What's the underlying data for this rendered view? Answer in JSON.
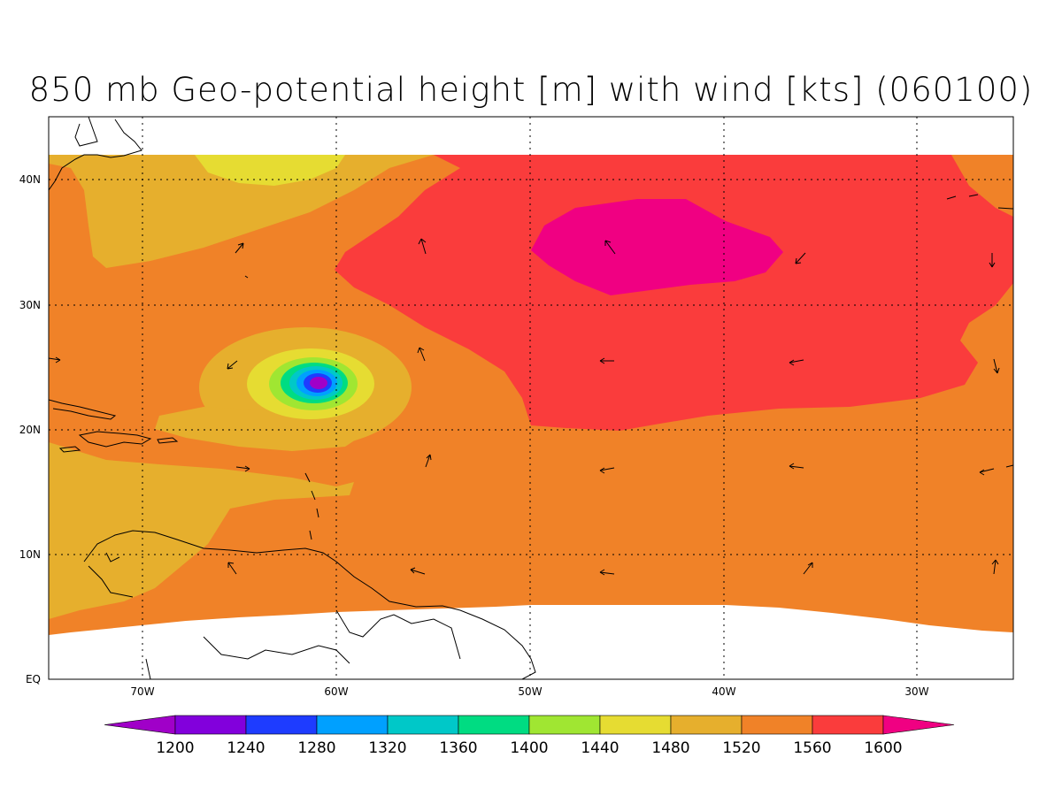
{
  "title": "850 mb Geo-potential height [m] with wind [kts] (060100)",
  "lon_ticks": [
    "70W",
    "60W",
    "50W",
    "40W",
    "30W"
  ],
  "lat_ticks": [
    "40N",
    "30N",
    "20N",
    "10N",
    "EQ"
  ],
  "colorbar": {
    "labels": [
      "1200",
      "1240",
      "1280",
      "1320",
      "1360",
      "1400",
      "1440",
      "1480",
      "1520",
      "1560",
      "1600"
    ],
    "colors": [
      "#a000c8",
      "#8200dc",
      "#1e3cff",
      "#00a0ff",
      "#00c8c8",
      "#00dc82",
      "#a0e632",
      "#e6dc32",
      "#e6af2d",
      "#f08228",
      "#fa3c3c",
      "#f00082"
    ]
  },
  "fills": {
    "r1440": "#e6dc32",
    "r1480": "#e6af2d",
    "r1520": "#f08228",
    "r1560": "#fa3c3c",
    "r1600": "#f00082"
  },
  "low_center": {
    "lon": -61,
    "lat": 23.5
  },
  "high_center": {
    "lon": -44,
    "lat": 34.5
  }
}
